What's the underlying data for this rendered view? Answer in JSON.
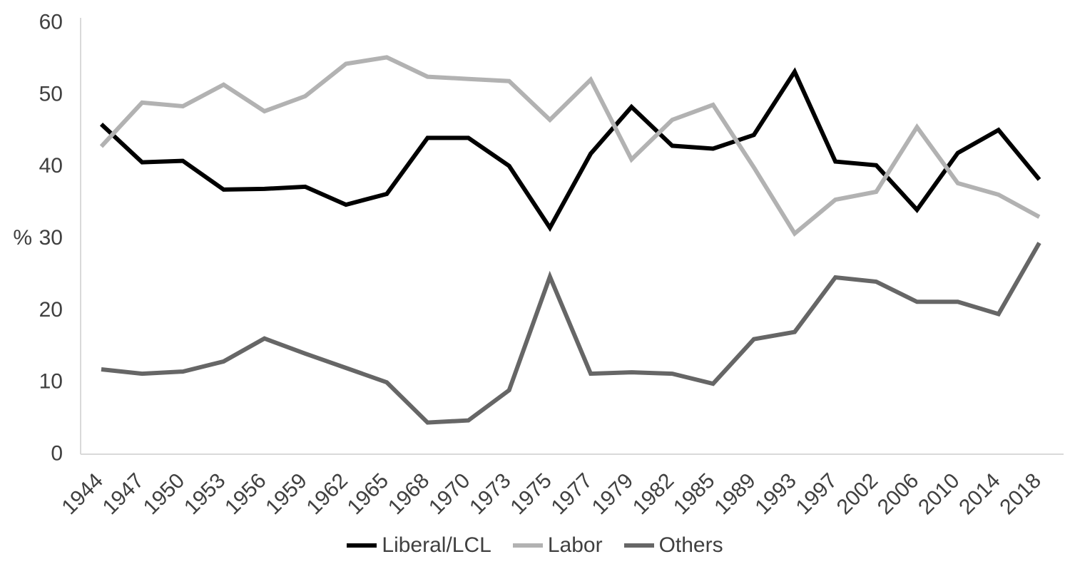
{
  "chart_data": {
    "type": "line",
    "title": "",
    "xlabel": "",
    "ylabel": "%",
    "ylim": [
      0,
      60
    ],
    "yticks": [
      0,
      10,
      20,
      30,
      40,
      50,
      60
    ],
    "grid": false,
    "legend_position": "bottom",
    "categories": [
      "1944",
      "1947",
      "1950",
      "1953",
      "1956",
      "1959",
      "1962",
      "1965",
      "1968",
      "1970",
      "1973",
      "1975",
      "1977",
      "1979",
      "1982",
      "1985",
      "1989",
      "1993",
      "1997",
      "2002",
      "2006",
      "2010",
      "2014",
      "2018"
    ],
    "series": [
      {
        "name": "Liberal/LCL",
        "color": "#000000",
        "values": [
          45.7,
          40.4,
          40.6,
          36.6,
          36.7,
          37.0,
          34.5,
          36.0,
          43.8,
          43.8,
          39.9,
          31.3,
          41.6,
          48.1,
          42.7,
          42.3,
          44.2,
          53.0,
          40.5,
          40.0,
          33.8,
          41.7,
          44.9,
          38.0
        ]
      },
      {
        "name": "Labor",
        "color": "#b2b2b2",
        "values": [
          42.6,
          48.7,
          48.2,
          51.2,
          47.5,
          49.6,
          54.1,
          55.0,
          52.3,
          52.0,
          51.7,
          46.3,
          51.9,
          40.8,
          46.3,
          48.4,
          39.7,
          30.5,
          35.2,
          36.3,
          45.3,
          37.5,
          35.9,
          32.8
        ]
      },
      {
        "name": "Others",
        "color": "#666666",
        "values": [
          11.6,
          11.0,
          11.3,
          12.7,
          15.9,
          13.8,
          11.8,
          9.8,
          4.2,
          4.5,
          8.7,
          24.5,
          11.0,
          11.2,
          11.0,
          9.6,
          15.8,
          16.8,
          24.4,
          23.8,
          21.0,
          21.0,
          19.3,
          29.2
        ]
      }
    ]
  },
  "colors": {
    "axis_line": "#d9d9d9",
    "tick_text": "#404040",
    "legend_text": "#404040"
  }
}
